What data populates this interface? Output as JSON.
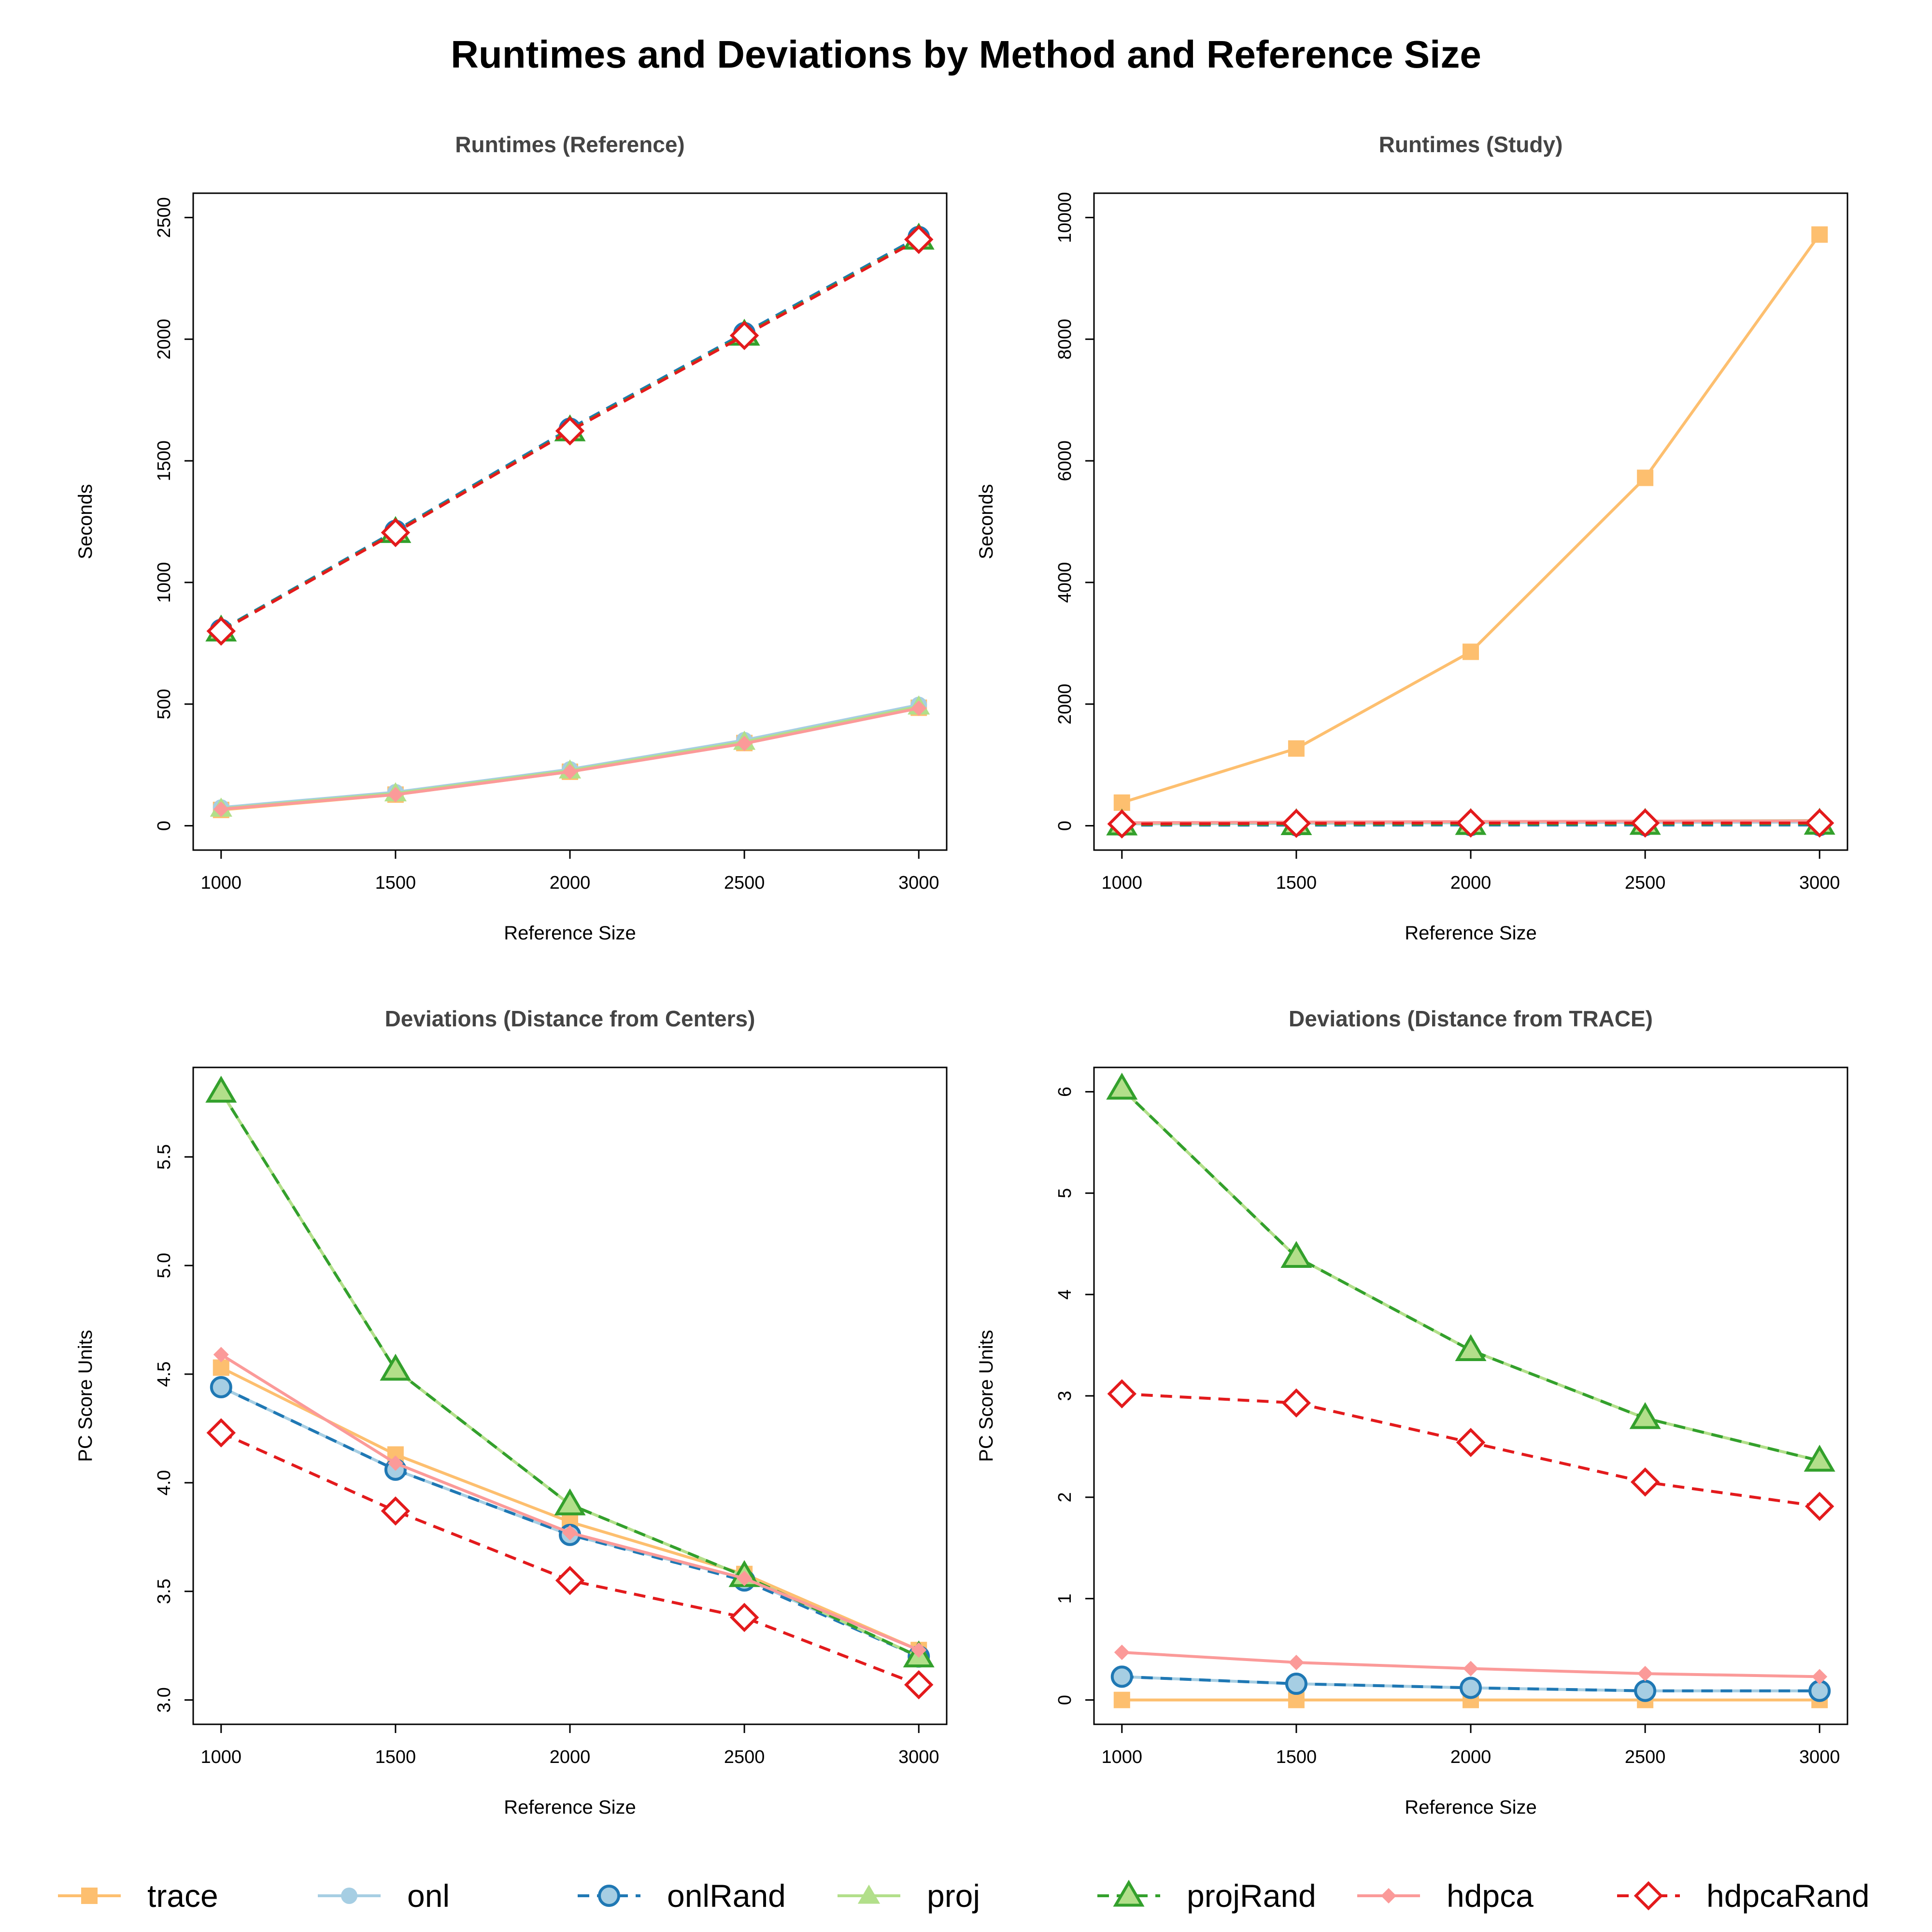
{
  "title": "Runtimes and Deviations by Method and Reference Size",
  "legend": [
    {
      "key": "trace",
      "label": "trace"
    },
    {
      "key": "onl",
      "label": "onl"
    },
    {
      "key": "onlRand",
      "label": "onlRand"
    },
    {
      "key": "proj",
      "label": "proj"
    },
    {
      "key": "projRand",
      "label": "projRand"
    },
    {
      "key": "hdpca",
      "label": "hdpca"
    },
    {
      "key": "hdpcaRand",
      "label": "hdpcaRand"
    }
  ],
  "styles": {
    "trace": {
      "color": "#FDBF6F",
      "marker": "filled-square",
      "dash": false
    },
    "onl": {
      "color": "#A6CEE3",
      "marker": "filled-circle",
      "dash": false
    },
    "onlRand": {
      "color": "#1F78B4",
      "fill": "#A6CEE3",
      "marker": "outlined-circle",
      "dash": true
    },
    "proj": {
      "color": "#B2DF8A",
      "marker": "filled-triangle",
      "dash": false
    },
    "projRand": {
      "color": "#33A02C",
      "fill": "#B2DF8A",
      "marker": "outlined-triangle",
      "dash": true
    },
    "hdpca": {
      "color": "#FB9A99",
      "marker": "filled-diamond",
      "dash": false
    },
    "hdpcaRand": {
      "color": "#E31A1C",
      "fill": "#FFFFFF",
      "marker": "outlined-diamond",
      "dash": true
    }
  },
  "chart_data": [
    {
      "type": "line",
      "title": "Runtimes (Reference)",
      "xlabel": "Reference Size",
      "ylabel": "Seconds",
      "x": [
        1000,
        1500,
        2000,
        2500,
        3000
      ],
      "xlim": [
        1000,
        3000
      ],
      "ylim": [
        0,
        2500
      ],
      "yticks": [
        0,
        500,
        1000,
        1500,
        2000,
        2500
      ],
      "grid": false,
      "series": [
        {
          "name": "trace",
          "values": [
            65,
            128,
            222,
            340,
            485
          ]
        },
        {
          "name": "onl",
          "values": [
            75,
            138,
            232,
            352,
            497
          ]
        },
        {
          "name": "proj",
          "values": [
            70,
            133,
            227,
            345,
            490
          ]
        },
        {
          "name": "hdpca",
          "values": [
            68,
            128,
            222,
            338,
            483
          ]
        },
        {
          "name": "onlRand",
          "values": [
            805,
            1212,
            1632,
            2025,
            2420
          ]
        },
        {
          "name": "projRand",
          "values": [
            802,
            1207,
            1625,
            2018,
            2413
          ]
        },
        {
          "name": "hdpcaRand",
          "values": [
            800,
            1205,
            1623,
            2015,
            2410
          ]
        }
      ]
    },
    {
      "type": "line",
      "title": "Runtimes (Study)",
      "xlabel": "Reference Size",
      "ylabel": "Seconds",
      "x": [
        1000,
        1500,
        2000,
        2500,
        3000
      ],
      "xlim": [
        1000,
        3000
      ],
      "ylim": [
        0,
        10000
      ],
      "yticks": [
        0,
        2000,
        4000,
        6000,
        8000,
        10000
      ],
      "grid": false,
      "series": [
        {
          "name": "trace",
          "values": [
            380,
            1270,
            2860,
            5720,
            9720
          ]
        },
        {
          "name": "onl",
          "values": [
            30,
            40,
            50,
            55,
            60
          ]
        },
        {
          "name": "proj",
          "values": [
            40,
            55,
            65,
            75,
            85
          ]
        },
        {
          "name": "hdpca",
          "values": [
            50,
            60,
            70,
            75,
            80
          ]
        },
        {
          "name": "onlRand",
          "values": [
            10,
            10,
            12,
            12,
            12
          ]
        },
        {
          "name": "projRand",
          "values": [
            20,
            25,
            28,
            30,
            32
          ]
        },
        {
          "name": "hdpcaRand",
          "values": [
            30,
            40,
            45,
            45,
            45
          ]
        }
      ]
    },
    {
      "type": "line",
      "title": "Deviations (Distance from Centers)",
      "xlabel": "Reference Size",
      "ylabel": "PC Score Units",
      "x": [
        1000,
        1500,
        2000,
        2500,
        3000
      ],
      "xlim": [
        1000,
        3000
      ],
      "ylim": [
        3.0,
        5.8
      ],
      "yticks": [
        3.0,
        3.5,
        4.0,
        4.5,
        5.0,
        5.5
      ],
      "grid": false,
      "series": [
        {
          "name": "trace",
          "values": [
            4.53,
            4.13,
            3.82,
            3.58,
            3.23
          ]
        },
        {
          "name": "onl",
          "values": [
            4.44,
            4.06,
            3.76,
            3.56,
            3.2
          ]
        },
        {
          "name": "onlRand",
          "values": [
            4.44,
            4.06,
            3.76,
            3.55,
            3.2
          ]
        },
        {
          "name": "proj",
          "values": [
            5.8,
            4.52,
            3.9,
            3.57,
            3.2
          ]
        },
        {
          "name": "projRand",
          "values": [
            5.8,
            4.52,
            3.9,
            3.57,
            3.2
          ]
        },
        {
          "name": "hdpca",
          "values": [
            4.59,
            4.09,
            3.77,
            3.56,
            3.23
          ]
        },
        {
          "name": "hdpcaRand",
          "values": [
            4.23,
            3.87,
            3.55,
            3.38,
            3.07
          ]
        }
      ]
    },
    {
      "type": "line",
      "title": "Deviations (Distance from TRACE)",
      "xlabel": "Reference Size",
      "ylabel": "PC Score Units",
      "x": [
        1000,
        1500,
        2000,
        2500,
        3000
      ],
      "xlim": [
        1000,
        3000
      ],
      "ylim": [
        0,
        6
      ],
      "yticks": [
        0,
        1,
        2,
        3,
        4,
        5,
        6
      ],
      "grid": false,
      "series": [
        {
          "name": "trace",
          "values": [
            0,
            0,
            0,
            0,
            0
          ]
        },
        {
          "name": "onl",
          "values": [
            0.23,
            0.16,
            0.12,
            0.09,
            0.09
          ]
        },
        {
          "name": "onlRand",
          "values": [
            0.23,
            0.16,
            0.12,
            0.09,
            0.09
          ]
        },
        {
          "name": "proj",
          "values": [
            6.03,
            4.37,
            3.45,
            2.78,
            2.36
          ]
        },
        {
          "name": "projRand",
          "values": [
            6.03,
            4.37,
            3.45,
            2.78,
            2.36
          ]
        },
        {
          "name": "hdpca",
          "values": [
            0.47,
            0.37,
            0.31,
            0.26,
            0.23
          ]
        },
        {
          "name": "hdpcaRand",
          "values": [
            3.02,
            2.93,
            2.54,
            2.15,
            1.91
          ]
        }
      ]
    }
  ]
}
